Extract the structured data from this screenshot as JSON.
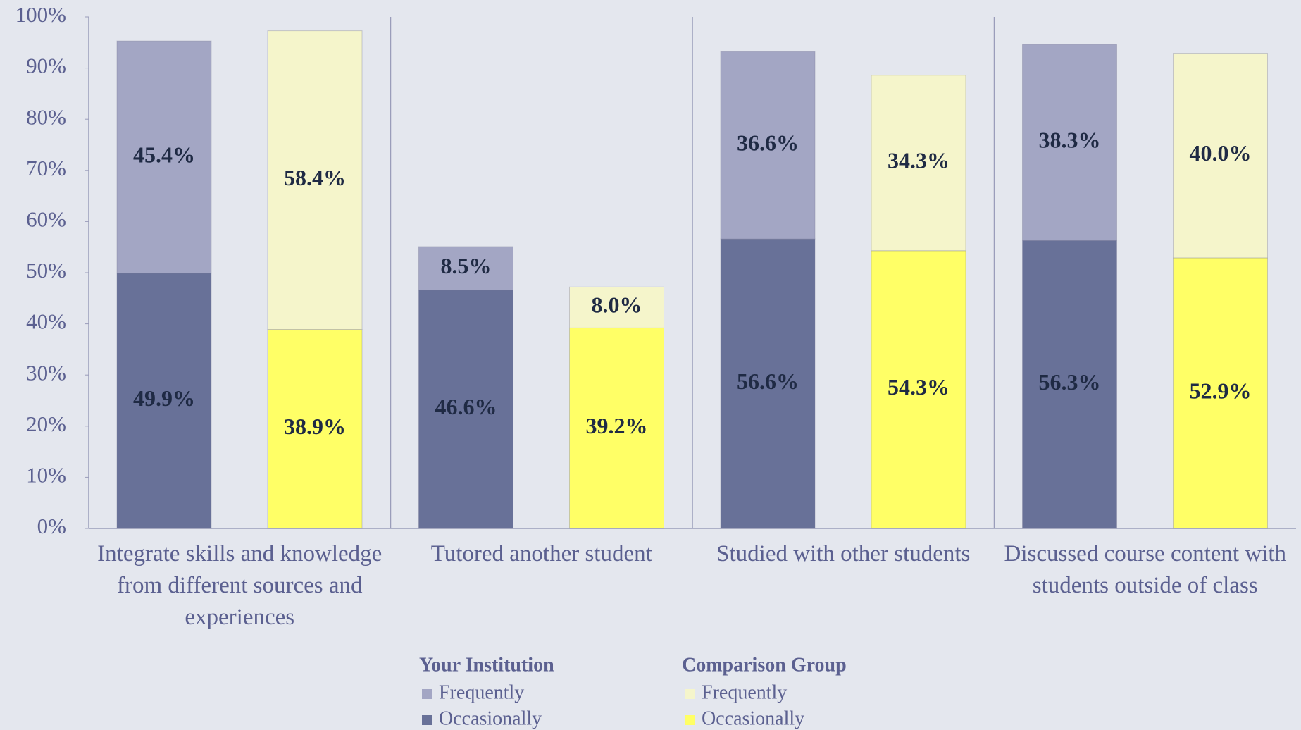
{
  "chart_data": {
    "type": "stacked_bar",
    "categories": [
      "Integrate skills and knowledge from different sources and experiences",
      "Tutored another student",
      "Studied with other students",
      "Discussed course content with students outside of class"
    ],
    "series": [
      {
        "group": "Your Institution",
        "name": "Occasionally",
        "color": "#687198",
        "values": [
          49.9,
          46.6,
          56.6,
          56.3
        ],
        "value_labels": [
          "49.9%",
          "46.6%",
          "56.6%",
          "56.3%"
        ]
      },
      {
        "group": "Your Institution",
        "name": "Frequently",
        "color": "#a3a6c4",
        "values": [
          45.4,
          8.5,
          36.6,
          38.3
        ],
        "value_labels": [
          "45.4%",
          "8.5%",
          "36.6%",
          "38.3%"
        ]
      },
      {
        "group": "Comparison Group",
        "name": "Occasionally",
        "color": "#ffff66",
        "values": [
          38.9,
          39.2,
          54.3,
          52.9
        ],
        "value_labels": [
          "38.9%",
          "39.2%",
          "54.3%",
          "52.9%"
        ]
      },
      {
        "group": "Comparison Group",
        "name": "Frequently",
        "color": "#f5f5cb",
        "values": [
          58.4,
          8.0,
          34.3,
          40.0
        ],
        "value_labels": [
          "58.4%",
          "8.0%",
          "34.3%",
          "40.0%"
        ]
      }
    ],
    "ylim": [
      0,
      100
    ],
    "yticks": [
      {
        "value": 0,
        "label": "0%"
      },
      {
        "value": 10,
        "label": "10%"
      },
      {
        "value": 20,
        "label": "20%"
      },
      {
        "value": 30,
        "label": "30%"
      },
      {
        "value": 40,
        "label": "40%"
      },
      {
        "value": 50,
        "label": "50%"
      },
      {
        "value": 60,
        "label": "60%"
      },
      {
        "value": 70,
        "label": "70%"
      },
      {
        "value": 80,
        "label": "80%"
      },
      {
        "value": 90,
        "label": "90%"
      },
      {
        "value": 100,
        "label": "100%"
      }
    ]
  }
}
